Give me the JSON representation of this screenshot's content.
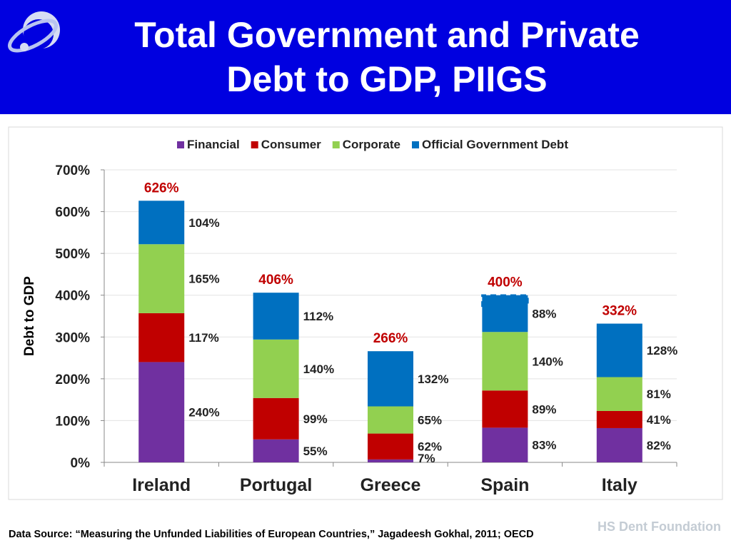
{
  "title": {
    "line1": "Total Government and Private",
    "line2": "Debt to GDP, PIIGS"
  },
  "footer": {
    "source": "Data Source: “Measuring the Unfunded Liabilities of European Countries,” Jagadeesh Gokhal, 2011; OECD"
  },
  "brand": {
    "name": "HS Dent Foundation"
  },
  "chart_data": {
    "type": "bar",
    "stacked": true,
    "categories": [
      "Ireland",
      "Portugal",
      "Greece",
      "Spain",
      "Italy"
    ],
    "series": [
      {
        "name": "Financial",
        "color": "#7030a0",
        "values": [
          240,
          55,
          7,
          83,
          82
        ],
        "labels": [
          "240%",
          "55%",
          "7%",
          "83%",
          "82%"
        ]
      },
      {
        "name": "Consumer",
        "color": "#c00000",
        "values": [
          117,
          99,
          62,
          89,
          41
        ],
        "labels": [
          "117%",
          "99%",
          "62%",
          "89%",
          "41%"
        ]
      },
      {
        "name": "Corporate",
        "color": "#92d050",
        "values": [
          165,
          140,
          65,
          140,
          81
        ],
        "labels": [
          "165%",
          "140%",
          "65%",
          "140%",
          "81%"
        ]
      },
      {
        "name": "Official Government Debt",
        "color": "#0070c0",
        "values": [
          104,
          112,
          132,
          88,
          128
        ],
        "labels": [
          "104%",
          "112%",
          "132%",
          "88%",
          "128%"
        ]
      }
    ],
    "totals": [
      {
        "category": "Ireland",
        "label": "626%"
      },
      {
        "category": "Portugal",
        "label": "406%"
      },
      {
        "category": "Greece",
        "label": "266%"
      },
      {
        "category": "Spain",
        "label": "400%"
      },
      {
        "category": "Italy",
        "label": "332%"
      }
    ],
    "total_label_color": "#c00000",
    "annotations": [
      {
        "category": "Spain",
        "type": "dashed-box",
        "from": 372,
        "to": 400,
        "color": "#0070c0"
      }
    ],
    "ylabel": "Debt to GDP",
    "xlabel": "",
    "ylim": [
      0,
      700
    ],
    "yticks": [
      0,
      100,
      200,
      300,
      400,
      500,
      600,
      700
    ],
    "ytick_labels": [
      "0%",
      "100%",
      "200%",
      "300%",
      "400%",
      "500%",
      "600%",
      "700%"
    ],
    "grid": true,
    "legend_position": "top"
  }
}
